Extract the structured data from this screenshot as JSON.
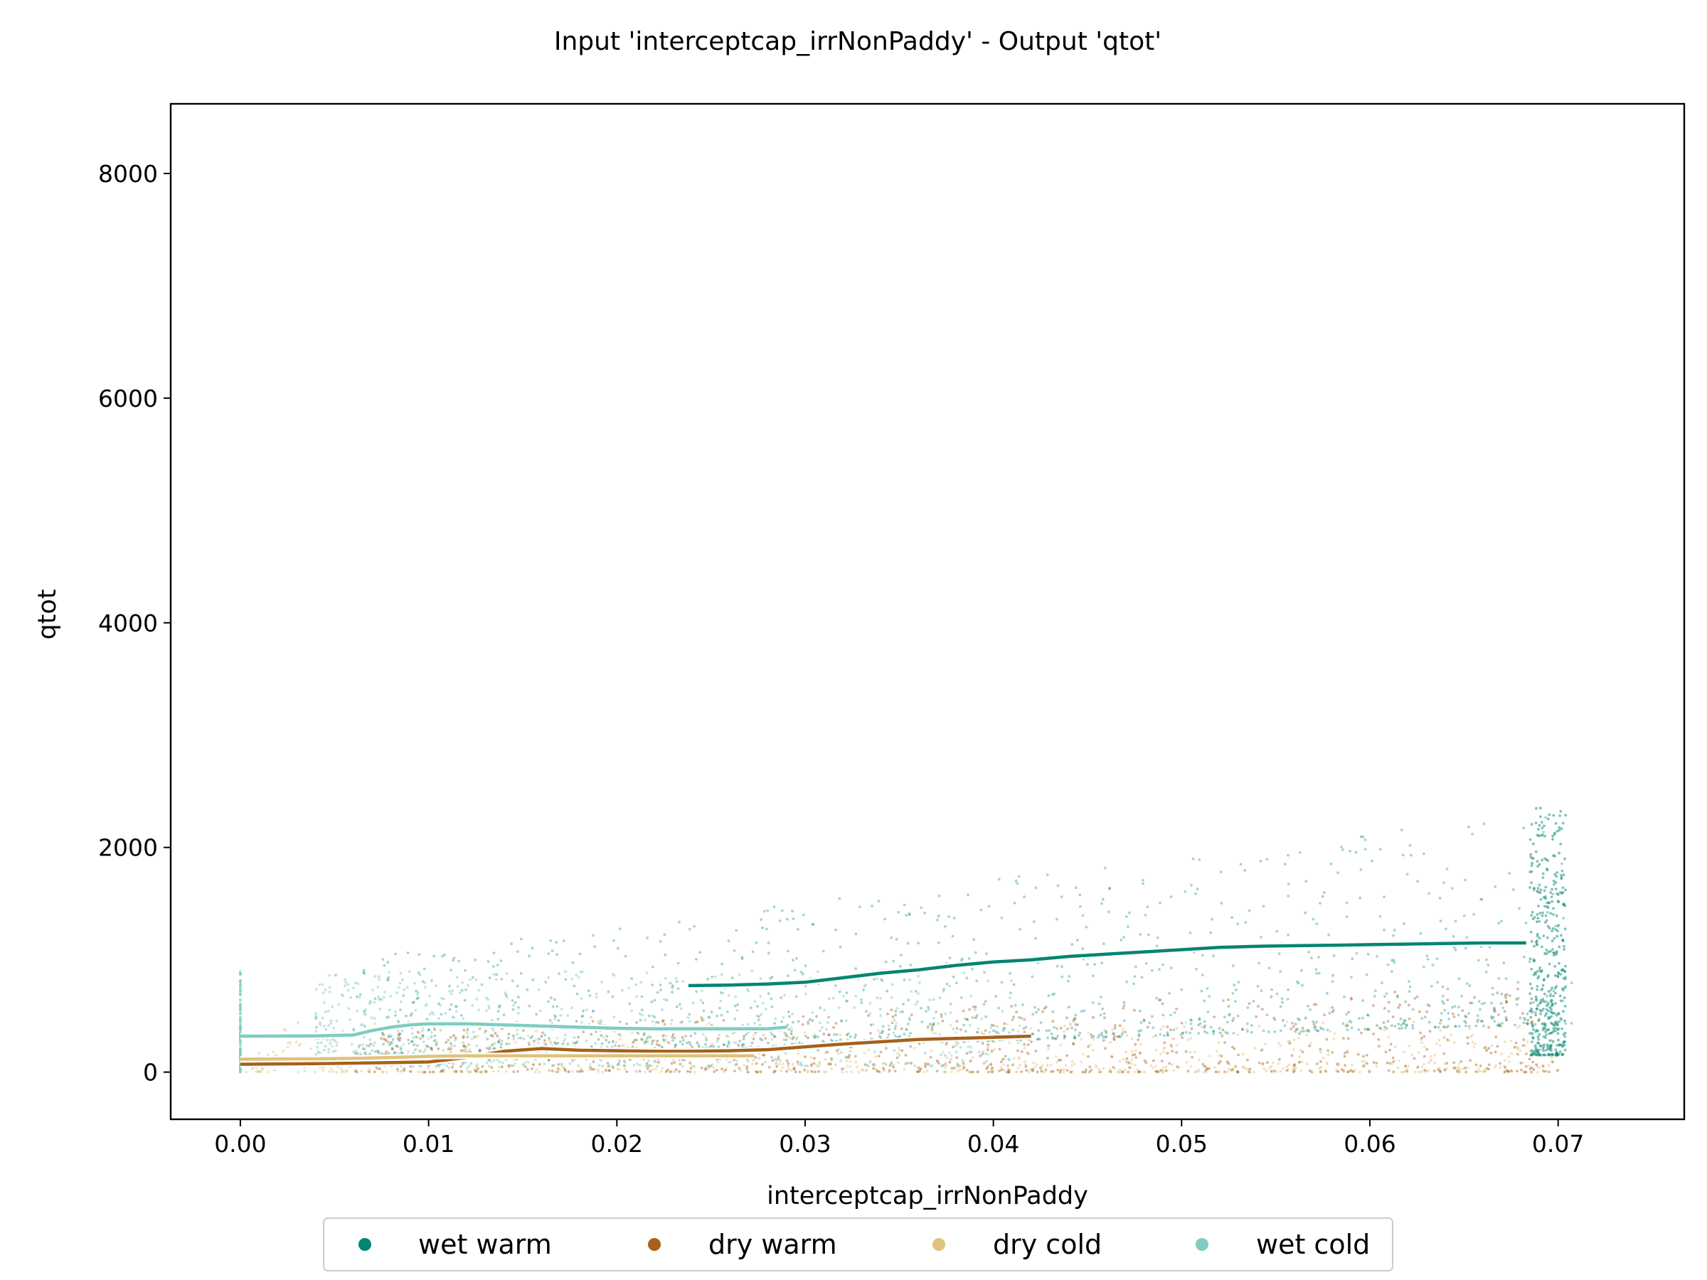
{
  "chart_data": {
    "type": "scatter",
    "title": "Input 'interceptcap_irrNonPaddy' - Output 'qtot'",
    "xlabel": "interceptcap_irrNonPaddy",
    "ylabel": "qtot",
    "xlim": [
      -0.0037,
      0.0767
    ],
    "ylim": [
      -420,
      8620
    ],
    "xticks": [
      0.0,
      0.01,
      0.02,
      0.03,
      0.04,
      0.05,
      0.06,
      0.07
    ],
    "xtick_labels": [
      "0.00",
      "0.01",
      "0.02",
      "0.03",
      "0.04",
      "0.05",
      "0.06",
      "0.07"
    ],
    "yticks": [
      0,
      2000,
      4000,
      6000,
      8000
    ],
    "ytick_labels": [
      "0",
      "2000",
      "4000",
      "6000",
      "8000"
    ],
    "grid": false,
    "legend_position": "bottom-center",
    "series": [
      {
        "name": "wet warm",
        "color": "#018571",
        "x_range": [
          0.0,
          0.073
        ],
        "trend": {
          "x": [
            0.0238,
            0.026,
            0.028,
            0.03,
            0.032,
            0.034,
            0.036,
            0.038,
            0.04,
            0.042,
            0.044,
            0.046,
            0.048,
            0.05,
            0.052,
            0.054,
            0.056,
            0.058,
            0.06,
            0.062,
            0.064,
            0.066,
            0.0683
          ],
          "y": [
            770,
            775,
            785,
            800,
            840,
            880,
            910,
            950,
            980,
            1000,
            1030,
            1050,
            1070,
            1090,
            1110,
            1120,
            1125,
            1130,
            1135,
            1140,
            1145,
            1150,
            1150
          ]
        }
      },
      {
        "name": "dry warm",
        "color": "#a6611a",
        "x_range": [
          0.0,
          0.0705
        ],
        "trend": {
          "x": [
            0.0,
            0.004,
            0.006,
            0.008,
            0.01,
            0.012,
            0.014,
            0.016,
            0.018,
            0.02,
            0.022,
            0.024,
            0.026,
            0.028,
            0.03,
            0.032,
            0.034,
            0.036,
            0.038,
            0.04,
            0.042
          ],
          "y": [
            70,
            75,
            80,
            85,
            90,
            130,
            185,
            210,
            195,
            190,
            185,
            185,
            190,
            200,
            225,
            250,
            270,
            290,
            300,
            310,
            320
          ]
        }
      },
      {
        "name": "dry cold",
        "color": "#dfc27d",
        "x_range": [
          0.0,
          0.073
        ],
        "trend": {
          "x": [
            0.0,
            0.004,
            0.006,
            0.008,
            0.01,
            0.012,
            0.014,
            0.016,
            0.018,
            0.02,
            0.022,
            0.024,
            0.026,
            0.0273
          ],
          "y": [
            115,
            118,
            122,
            130,
            140,
            145,
            145,
            145,
            145,
            145,
            145,
            145,
            145,
            145
          ]
        }
      },
      {
        "name": "wet cold",
        "color": "#80cdc1",
        "x_range": [
          0.0,
          0.041
        ],
        "trend": {
          "x": [
            0.0,
            0.004,
            0.006,
            0.007,
            0.008,
            0.009,
            0.01,
            0.012,
            0.014,
            0.016,
            0.018,
            0.02,
            0.022,
            0.024,
            0.026,
            0.028,
            0.029
          ],
          "y": [
            320,
            322,
            330,
            370,
            400,
            420,
            430,
            430,
            420,
            410,
            400,
            390,
            385,
            385,
            385,
            385,
            400
          ]
        }
      }
    ]
  }
}
